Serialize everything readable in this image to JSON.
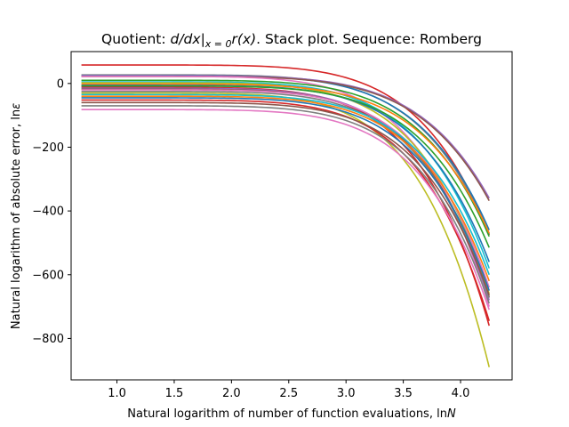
{
  "chart_data": {
    "type": "line",
    "title": {
      "prefix": "Quotient: ",
      "math": "d/dx|",
      "subscript": "x = 0",
      "math2": "r(x)",
      "suffix": ". Stack plot. Sequence: Romberg"
    },
    "xlabel": {
      "text": "Natural logarithm of number of function evaluations, ln",
      "var": "N"
    },
    "ylabel": {
      "text": "Natural logarithm of absolute error, ln",
      "var": "ε"
    },
    "xlim": [
      0.6,
      4.45
    ],
    "ylim": [
      -930,
      100
    ],
    "xticks": [
      1.0,
      1.5,
      2.0,
      2.5,
      3.0,
      3.5,
      4.0
    ],
    "xtick_labels": [
      "1.0",
      "1.5",
      "2.0",
      "2.5",
      "3.0",
      "3.5",
      "4.0"
    ],
    "yticks": [
      0,
      -200,
      -400,
      -600,
      -800
    ],
    "ytick_labels": [
      "0",
      "−200",
      "−400",
      "−600",
      "−800"
    ],
    "x_start": 0.69,
    "x_end": 4.25,
    "series": [
      {
        "color": "#d62728",
        "start": 58,
        "end": -475
      },
      {
        "color": "#7f7f7f",
        "start": 27,
        "end": -472
      },
      {
        "color": "#1f77b4",
        "start": 25,
        "end": -460
      },
      {
        "color": "#9467bd",
        "start": 24,
        "end": -360
      },
      {
        "color": "#8c564b",
        "start": 22,
        "end": -368
      },
      {
        "color": "#e377c2",
        "start": 22,
        "end": -700
      },
      {
        "color": "#2ca02c",
        "start": 10,
        "end": -480
      },
      {
        "color": "#17becf",
        "start": 5,
        "end": -580
      },
      {
        "color": "#bcbd22",
        "start": 2,
        "end": -660
      },
      {
        "color": "#ff7f0e",
        "start": -2,
        "end": -470
      },
      {
        "color": "#1f77b4",
        "start": -6,
        "end": -560
      },
      {
        "color": "#2ca02c",
        "start": -8,
        "end": -515
      },
      {
        "color": "#d62728",
        "start": -12,
        "end": -760
      },
      {
        "color": "#9467bd",
        "start": -15,
        "end": -680
      },
      {
        "color": "#8c564b",
        "start": -18,
        "end": -670
      },
      {
        "color": "#e377c2",
        "start": -20,
        "end": -640
      },
      {
        "color": "#7f7f7f",
        "start": -25,
        "end": -672
      },
      {
        "color": "#bcbd22",
        "start": -30,
        "end": -890
      },
      {
        "color": "#17becf",
        "start": -35,
        "end": -600
      },
      {
        "color": "#ff7f0e",
        "start": -40,
        "end": -620
      },
      {
        "color": "#1f77b4",
        "start": -45,
        "end": -650
      },
      {
        "color": "#d62728",
        "start": -52,
        "end": -745
      },
      {
        "color": "#8c564b",
        "start": -60,
        "end": -665
      },
      {
        "color": "#7f7f7f",
        "start": -70,
        "end": -690
      },
      {
        "color": "#e377c2",
        "start": -82,
        "end": -710
      }
    ]
  }
}
